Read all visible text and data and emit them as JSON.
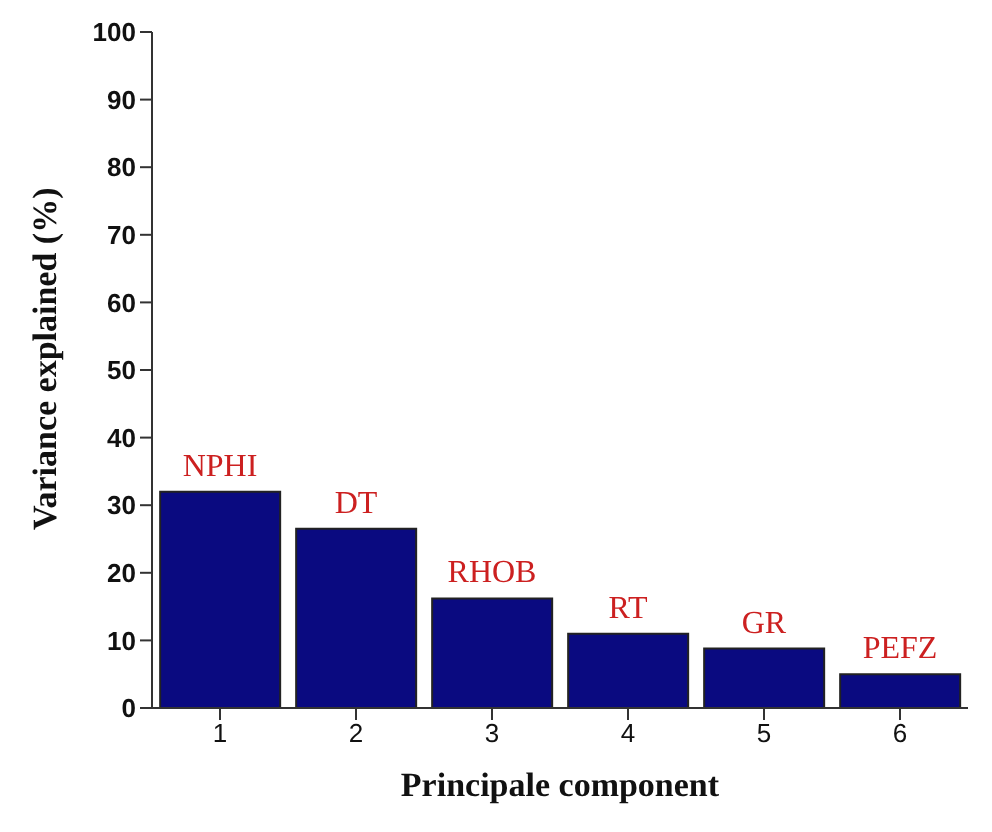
{
  "chart_data": {
    "type": "bar",
    "xlabel": "Principale component",
    "ylabel": "Variance explained (%)",
    "categories": [
      "1",
      "2",
      "3",
      "4",
      "5",
      "6"
    ],
    "values": [
      32,
      26.5,
      16.2,
      11,
      8.8,
      5
    ],
    "color": "#0a0a80",
    "ylim": [
      0,
      100
    ],
    "yticks": [
      0,
      10,
      20,
      30,
      40,
      50,
      60,
      70,
      80,
      90,
      100
    ],
    "grid": false,
    "annotations": [
      {
        "text": "NPHI",
        "x": "1",
        "y": 32
      },
      {
        "text": "DT",
        "x": "2",
        "y": 26.5
      },
      {
        "text": "RHOB",
        "x": "3",
        "y": 16.2
      },
      {
        "text": "RT",
        "x": "4",
        "y": 11
      },
      {
        "text": "GR",
        "x": "5",
        "y": 8.8
      },
      {
        "text": "PEFZ",
        "x": "6",
        "y": 5
      }
    ]
  }
}
